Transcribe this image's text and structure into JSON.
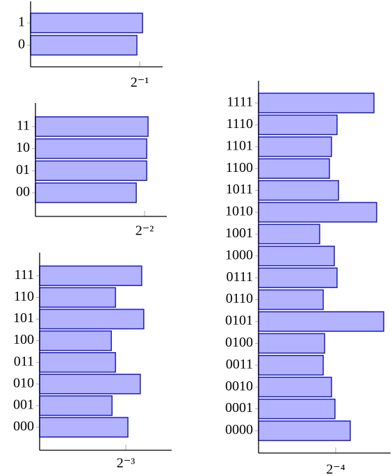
{
  "chart_data": [
    {
      "type": "bar",
      "orientation": "horizontal",
      "color": "#b3b3ff",
      "edge_color": "#1a1acc",
      "categories": [
        "0",
        "1"
      ],
      "values": [
        0.487,
        0.513
      ],
      "xlim": [
        0,
        0.605
      ],
      "xticks": [
        {
          "value": 0.5,
          "label": "2⁻¹"
        }
      ]
    },
    {
      "type": "bar",
      "orientation": "horizontal",
      "color": "#b3b3ff",
      "edge_color": "#1a1acc",
      "categories": [
        "00",
        "01",
        "10",
        "11"
      ],
      "values": [
        0.231,
        0.255,
        0.255,
        0.258
      ],
      "xlim": [
        0,
        0.301
      ],
      "xticks": [
        {
          "value": 0.25,
          "label": "2⁻²"
        }
      ]
    },
    {
      "type": "bar",
      "orientation": "horizontal",
      "color": "#b3b3ff",
      "edge_color": "#1a1acc",
      "categories": [
        "000",
        "001",
        "010",
        "011",
        "100",
        "101",
        "110",
        "111"
      ],
      "values": [
        0.128,
        0.105,
        0.146,
        0.11,
        0.104,
        0.151,
        0.11,
        0.148
      ],
      "xlim": [
        0,
        0.1915
      ],
      "xticks": [
        {
          "value": 0.125,
          "label": "2⁻³"
        }
      ]
    },
    {
      "type": "bar",
      "orientation": "horizontal",
      "color": "#b3b3ff",
      "edge_color": "#1a1acc",
      "categories": [
        "0000",
        "0001",
        "0010",
        "0011",
        "0100",
        "0101",
        "0110",
        "0111",
        "1000",
        "1001",
        "1010",
        "1011",
        "1100",
        "1101",
        "1110",
        "1111"
      ],
      "values": [
        0.0743,
        0.0619,
        0.0591,
        0.0524,
        0.0535,
        0.1014,
        0.0524,
        0.0636,
        0.0614,
        0.0495,
        0.0957,
        0.0648,
        0.0574,
        0.0591,
        0.0636,
        0.0935
      ],
      "xlim": [
        0,
        0.107
      ],
      "xticks": [
        {
          "value": 0.0625,
          "label": "2⁻⁴"
        }
      ]
    }
  ]
}
